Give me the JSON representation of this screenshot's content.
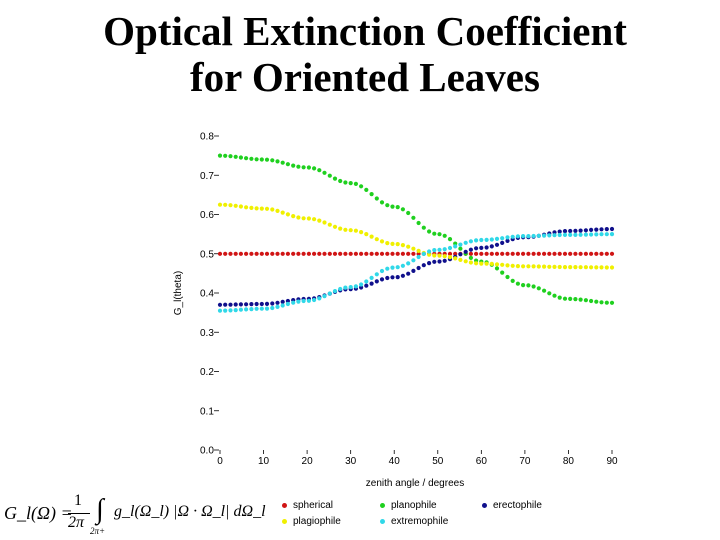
{
  "title": {
    "line1": "Optical Extinction Coefficient",
    "line2": "for Oriented Leaves"
  },
  "formula": {
    "lhs": "G_l(Ω) =",
    "fraction_num": "1",
    "fraction_den": "2π",
    "integral_limit": "2π+",
    "integrand": "g_l(Ω_l) |Ω · Ω_l| dΩ_l"
  },
  "chart_data": {
    "type": "scatter",
    "title": "",
    "xlabel": "zenith angle / degrees",
    "ylabel": "G_l(theta)",
    "xlim": [
      0,
      90
    ],
    "ylim": [
      0,
      0.8
    ],
    "xticks": [
      0,
      10,
      20,
      30,
      40,
      50,
      60,
      70,
      80,
      90
    ],
    "yticks": [
      0.0,
      0.1,
      0.2,
      0.3,
      0.4,
      0.5,
      0.6,
      0.7,
      0.8
    ],
    "xtick_labels": [
      "0",
      "10",
      "20",
      "30",
      "40",
      "50",
      "60",
      "70",
      "80",
      "90"
    ],
    "ytick_labels": [
      "0.0",
      "0.1",
      "0.2",
      "0.3",
      "0.4",
      "0.5",
      "0.6",
      "0.7",
      "0.8"
    ],
    "x": [
      0,
      10,
      20,
      30,
      40,
      50,
      60,
      70,
      80,
      90
    ],
    "series": [
      {
        "name": "spherical",
        "color": "#d01515",
        "values": [
          0.5,
          0.5,
          0.5,
          0.5,
          0.5,
          0.5,
          0.5,
          0.5,
          0.5,
          0.5
        ]
      },
      {
        "name": "planophile",
        "color": "#1fd01f",
        "values": [
          0.75,
          0.74,
          0.72,
          0.68,
          0.62,
          0.55,
          0.48,
          0.42,
          0.385,
          0.375
        ]
      },
      {
        "name": "erectophile",
        "color": "#10108c",
        "values": [
          0.37,
          0.372,
          0.385,
          0.41,
          0.44,
          0.48,
          0.515,
          0.542,
          0.558,
          0.563
        ]
      },
      {
        "name": "plagiophile",
        "color": "#f0f000",
        "values": [
          0.625,
          0.615,
          0.59,
          0.56,
          0.525,
          0.495,
          0.475,
          0.468,
          0.466,
          0.465
        ]
      },
      {
        "name": "extremophile",
        "color": "#30d8e8",
        "values": [
          0.355,
          0.36,
          0.38,
          0.415,
          0.465,
          0.51,
          0.535,
          0.545,
          0.548,
          0.55
        ]
      }
    ],
    "legend_position": "bottom"
  }
}
